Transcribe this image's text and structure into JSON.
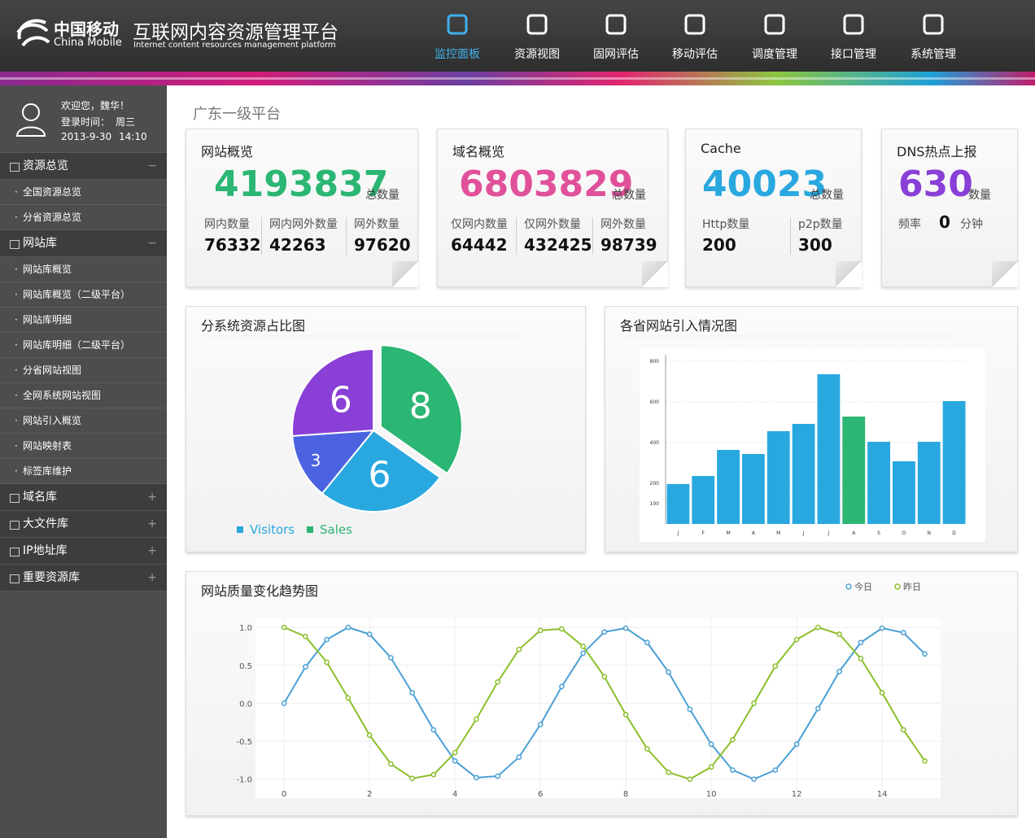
{
  "header": {
    "brand_cn": "中国移动",
    "brand_en": "China Mobile",
    "title": "互联网内容资源管理平台",
    "subtitle": "Internet content resources management platform",
    "nav": [
      {
        "label": "监控面板",
        "active": true
      },
      {
        "label": "资源视图"
      },
      {
        "label": "固网评估"
      },
      {
        "label": "移动评估"
      },
      {
        "label": "调度管理"
      },
      {
        "label": "接口管理"
      },
      {
        "label": "系统管理"
      }
    ]
  },
  "user": {
    "welcome": "欢迎您，魏华！",
    "login_label": "登录时间：",
    "weekday": "周三",
    "date": "2013-9-30",
    "time": "14:10"
  },
  "sidebar": [
    {
      "title": "资源总览",
      "toggle": "−",
      "items": [
        "全国资源总览",
        "分省资源总览"
      ]
    },
    {
      "title": "网站库",
      "toggle": "−",
      "items": [
        "网站库概览",
        "网站库概览（二级平台）",
        "网站库明细",
        "网站库明细（二级平台）",
        "分省网站视图",
        "全网系统网站视图",
        "网站引入概览",
        "网站映射表",
        "标签库维护"
      ]
    },
    {
      "title": "域名库",
      "toggle": "+"
    },
    {
      "title": "大文件库",
      "toggle": "+"
    },
    {
      "title": "IP地址库",
      "toggle": "+"
    },
    {
      "title": "重要资源库",
      "toggle": "+"
    }
  ],
  "page_title": "广东一级平台",
  "stats": [
    {
      "title": "网站概览",
      "value": 4193837,
      "unit": "总数量",
      "color": "#2bb673",
      "details": [
        {
          "label": "网内数量",
          "value": 76332
        },
        {
          "label": "网内网外数量",
          "value": 42263
        },
        {
          "label": "网外数量",
          "value": 97620
        }
      ]
    },
    {
      "title": "域名概览",
      "value": 6803829,
      "unit": "总数量",
      "color": "#e0519a",
      "details": [
        {
          "label": "仅网内数量",
          "value": 64442
        },
        {
          "label": "仅网外数量",
          "value": 432425
        },
        {
          "label": "网外数量",
          "value": 98739
        }
      ]
    },
    {
      "title": "Cache",
      "value": 40023,
      "unit": "总数量",
      "color": "#29a8e0",
      "details": [
        {
          "label": "Http数量",
          "value": 200
        },
        {
          "label": "p2p数量",
          "value": 300
        }
      ]
    },
    {
      "title": "DNS热点上报",
      "value": 630,
      "unit": "数量",
      "color": "#8a3fd6",
      "rate": {
        "label": "频率",
        "value": 0,
        "unit": "分钟"
      }
    }
  ],
  "chart_data": [
    {
      "type": "pie",
      "title": "分系统资源占比图",
      "values": [
        8,
        6,
        3,
        6
      ],
      "colors": [
        "#2bb673",
        "#29a8e0",
        "#4b63e0",
        "#8a3fd6"
      ],
      "legend": [
        {
          "name": "Visitors",
          "color": "#29a8e0"
        },
        {
          "name": "Sales",
          "color": "#2bb673"
        }
      ]
    },
    {
      "type": "bar",
      "title": "各省网站引入情况图",
      "categories": [
        "J",
        "F",
        "M",
        "A",
        "M",
        "J",
        "J",
        "A",
        "S",
        "O",
        "N",
        "D"
      ],
      "values": [
        196,
        236,
        364,
        344,
        456,
        492,
        736,
        528,
        404,
        308,
        404,
        604
      ],
      "colors": [
        "#29a8e0",
        "#29a8e0",
        "#29a8e0",
        "#29a8e0",
        "#29a8e0",
        "#29a8e0",
        "#29a8e0",
        "#2bb673",
        "#29a8e0",
        "#29a8e0",
        "#29a8e0",
        "#29a8e0"
      ],
      "ylim": [
        0,
        800
      ],
      "yticks": [
        100,
        200,
        400,
        600,
        800
      ],
      "grid": true
    },
    {
      "type": "line",
      "title": "网站质量变化趋势图",
      "x": [
        0,
        0.5,
        1,
        1.5,
        2,
        2.5,
        3,
        3.5,
        4,
        4.5,
        5,
        5.5,
        6,
        6.5,
        7,
        7.5,
        8,
        8.5,
        9,
        9.5,
        10,
        10.5,
        11,
        11.5,
        12,
        12.5,
        13,
        13.5,
        14,
        14.5,
        15
      ],
      "series": [
        {
          "name": "今日",
          "color": "#4a9fd6",
          "values": [
            0,
            0.48,
            0.84,
            1.0,
            0.91,
            0.6,
            0.14,
            -0.35,
            -0.76,
            -0.98,
            -0.96,
            -0.71,
            -0.28,
            0.22,
            0.66,
            0.94,
            0.99,
            0.8,
            0.41,
            -0.08,
            -0.54,
            -0.88,
            -1.0,
            -0.88,
            -0.54,
            -0.07,
            0.42,
            0.8,
            0.99,
            0.93,
            0.65
          ]
        },
        {
          "name": "昨日",
          "color": "#8bbf2a",
          "values": [
            1.0,
            0.88,
            0.54,
            0.07,
            -0.42,
            -0.8,
            -0.99,
            -0.94,
            -0.65,
            -0.21,
            0.28,
            0.71,
            0.96,
            0.98,
            0.75,
            0.35,
            -0.15,
            -0.6,
            -0.91,
            -1.0,
            -0.84,
            -0.48,
            0.0,
            0.49,
            0.84,
            1.0,
            0.91,
            0.59,
            0.14,
            -0.35,
            -0.76
          ]
        }
      ],
      "xlim": [
        -0.67,
        15.37
      ],
      "ylim": [
        -1.25,
        1.13
      ],
      "xticks": [
        0,
        2,
        4,
        6,
        8,
        10,
        12,
        14
      ],
      "yticks": [
        {
          "value": 1,
          "label": "1.0"
        },
        {
          "value": 0.5,
          "label": "0.5"
        },
        {
          "value": 0,
          "label": "0.0"
        },
        {
          "value": -0.5,
          "label": "-0.5"
        },
        {
          "value": -1,
          "label": "-1.0"
        }
      ],
      "grid": true
    }
  ]
}
